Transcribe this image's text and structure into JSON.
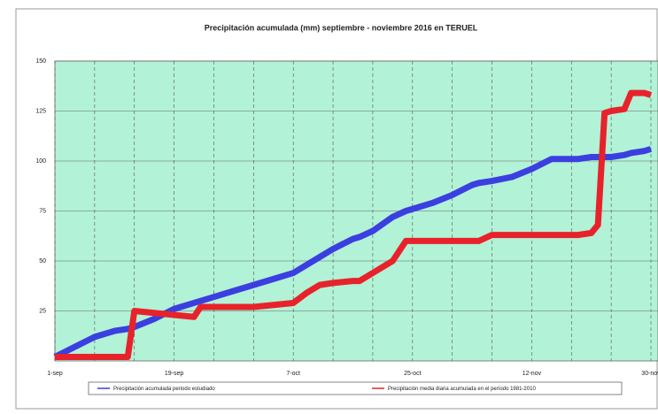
{
  "chart_data": {
    "type": "line",
    "title": "Precipitación acumulada (mm) septiembre - noviembre 2016 en TERUEL",
    "x": [
      "2016-09-01",
      "2016-09-04",
      "2016-09-07",
      "2016-09-10",
      "2016-09-12",
      "2016-09-13",
      "2016-09-16",
      "2016-09-19",
      "2016-09-22",
      "2016-09-23",
      "2016-09-25",
      "2016-09-28",
      "2016-10-01",
      "2016-10-04",
      "2016-10-07",
      "2016-10-09",
      "2016-10-10",
      "2016-10-11",
      "2016-10-13",
      "2016-10-16",
      "2016-10-17",
      "2016-10-19",
      "2016-10-22",
      "2016-10-24",
      "2016-10-25",
      "2016-10-28",
      "2016-10-31",
      "2016-11-03",
      "2016-11-04",
      "2016-11-06",
      "2016-11-09",
      "2016-11-12",
      "2016-11-15",
      "2016-11-18",
      "2016-11-19",
      "2016-11-21",
      "2016-11-22",
      "2016-11-23",
      "2016-11-24",
      "2016-11-26",
      "2016-11-27",
      "2016-11-29",
      "2016-11-30"
    ],
    "series": [
      {
        "name": "Precipitación acumulada periodo estudiado",
        "color": "#3b3fe0",
        "values": [
          2,
          7,
          12,
          15,
          16,
          17,
          21,
          26,
          29,
          30,
          32,
          35,
          38,
          41,
          44,
          48,
          50,
          52,
          56,
          61,
          62,
          65,
          72,
          75,
          76,
          79,
          83,
          88,
          89,
          90,
          92,
          96,
          101,
          101,
          101,
          102,
          102,
          102,
          102,
          103,
          104,
          105,
          106
        ]
      },
      {
        "name": "Precipitación media diaria acumulada en el período 1981-2010",
        "color": "#e8222a",
        "values": [
          2,
          2,
          2,
          2,
          2,
          25,
          24,
          23,
          22,
          27,
          27,
          27,
          27,
          28,
          29,
          34,
          36,
          38,
          39,
          40,
          40,
          44,
          50,
          60,
          60,
          60,
          60,
          60,
          60,
          63,
          63,
          63,
          63,
          63,
          63,
          64,
          68,
          124,
          125,
          126,
          134,
          134,
          133
        ]
      }
    ],
    "xlim": [
      "2016-09-01",
      "2016-11-30"
    ],
    "xticks": [
      {
        "value": "2016-09-01",
        "label": "1-sep"
      },
      {
        "value": "2016-09-19",
        "label": "19-sep"
      },
      {
        "value": "2016-10-07",
        "label": "7-oct"
      },
      {
        "value": "2016-10-25",
        "label": "25-oct"
      },
      {
        "value": "2016-11-12",
        "label": "12-nov"
      },
      {
        "value": "2016-11-30",
        "label": "30-nov"
      }
    ],
    "ylim": [
      0,
      150
    ],
    "yticks": [
      25,
      50,
      75,
      100,
      125,
      150
    ],
    "grid": true,
    "background": "#b2f2d6"
  }
}
